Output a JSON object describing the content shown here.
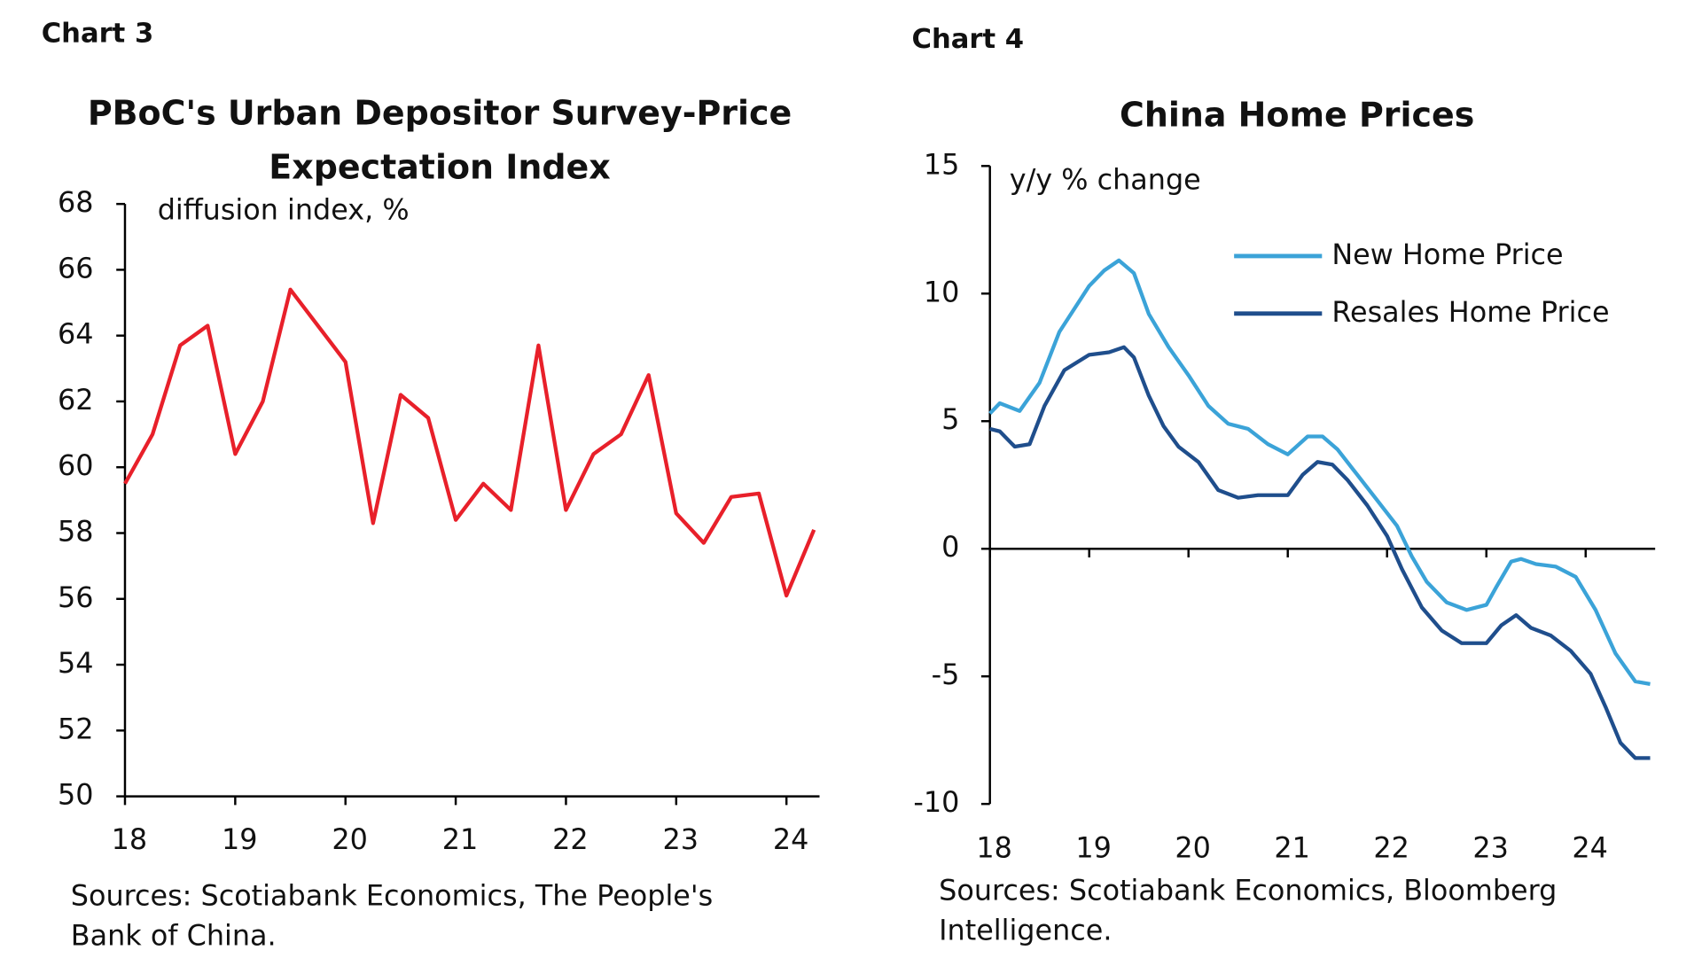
{
  "chart_data": [
    {
      "type": "line",
      "label": "Chart 3",
      "title": [
        "PBoC's Urban Depositor Survey-Price",
        "Expectation Index"
      ],
      "ylabel": "diffusion index, %",
      "source": [
        "Sources: Scotiabank Economics, The People's",
        "Bank of China."
      ],
      "x": [
        2018,
        2018.25,
        2018.5,
        2018.75,
        2019,
        2019.25,
        2019.5,
        2019.75,
        2020,
        2020.25,
        2020.5,
        2020.75,
        2021,
        2021.25,
        2021.5,
        2021.75,
        2022,
        2022.25,
        2022.5,
        2022.75,
        2023,
        2023.25,
        2023.5,
        2023.75,
        2024,
        2024.25
      ],
      "series": [
        {
          "name": null,
          "color": "#e8202a",
          "values": [
            59.5,
            61,
            63.7,
            64.3,
            60.4,
            62,
            65.4,
            64.3,
            63.2,
            58.3,
            62.2,
            61.5,
            58.4,
            59.5,
            58.7,
            63.7,
            58.7,
            60.4,
            61,
            62.8,
            58.6,
            57.7,
            59.1,
            59.2,
            56.1,
            58.1
          ]
        }
      ],
      "xlim": [
        2018,
        2024.3
      ],
      "xticks": [
        {
          "value": 2018,
          "label": "18"
        },
        {
          "value": 2019,
          "label": "19"
        },
        {
          "value": 2020,
          "label": "20"
        },
        {
          "value": 2021,
          "label": "21"
        },
        {
          "value": 2022,
          "label": "22"
        },
        {
          "value": 2023,
          "label": "23"
        },
        {
          "value": 2024,
          "label": "24"
        }
      ],
      "ylim": [
        50,
        68
      ],
      "yticks": [
        50,
        52,
        54,
        56,
        58,
        60,
        62,
        64,
        66,
        68
      ]
    },
    {
      "type": "line",
      "label": "Chart 4",
      "title": [
        "China Home Prices"
      ],
      "ylabel": "y/y % change",
      "source": [
        "Sources: Scotiabank Economics,  Bloomberg",
        "Intelligence."
      ],
      "legend": "upper right",
      "series": [
        {
          "name": "New Home Price",
          "color": "#3ba3d8",
          "x": [
            2018,
            2018.1,
            2018.3,
            2018.5,
            2018.7,
            2019,
            2019.15,
            2019.3,
            2019.45,
            2019.6,
            2019.8,
            2020,
            2020.2,
            2020.4,
            2020.6,
            2020.8,
            2021,
            2021.2,
            2021.35,
            2021.5,
            2021.7,
            2021.9,
            2022.1,
            2022.25,
            2022.4,
            2022.6,
            2022.8,
            2023,
            2023.1,
            2023.25,
            2023.35,
            2023.5,
            2023.7,
            2023.9,
            2024.1,
            2024.3,
            2024.5,
            2024.65
          ],
          "values": [
            5.3,
            5.7,
            5.4,
            6.5,
            8.5,
            10.3,
            10.9,
            11.3,
            10.8,
            9.2,
            7.9,
            6.8,
            5.6,
            4.9,
            4.7,
            4.1,
            3.7,
            4.4,
            4.4,
            3.9,
            2.9,
            1.9,
            0.9,
            -0.3,
            -1.3,
            -2.1,
            -2.4,
            -2.2,
            -1.5,
            -0.5,
            -0.4,
            -0.6,
            -0.7,
            -1.1,
            -2.4,
            -4.1,
            -5.2,
            -5.3
          ]
        },
        {
          "name": "Resales Home Price",
          "color": "#1f4e8c",
          "x": [
            2018,
            2018.1,
            2018.25,
            2018.4,
            2018.55,
            2018.75,
            2019,
            2019.2,
            2019.35,
            2019.45,
            2019.6,
            2019.75,
            2019.9,
            2020.1,
            2020.3,
            2020.5,
            2020.7,
            2021,
            2021.15,
            2021.3,
            2021.45,
            2021.6,
            2021.8,
            2022,
            2022.15,
            2022.35,
            2022.55,
            2022.75,
            2023,
            2023.15,
            2023.3,
            2023.45,
            2023.65,
            2023.85,
            2024.05,
            2024.2,
            2024.35,
            2024.5,
            2024.65
          ],
          "values": [
            4.7,
            4.6,
            4.0,
            4.1,
            5.6,
            7.0,
            7.6,
            7.7,
            7.9,
            7.5,
            6.0,
            4.8,
            4.0,
            3.4,
            2.3,
            2.0,
            2.1,
            2.1,
            2.9,
            3.4,
            3.3,
            2.7,
            1.7,
            0.5,
            -0.8,
            -2.3,
            -3.2,
            -3.7,
            -3.7,
            -3.0,
            -2.6,
            -3.1,
            -3.4,
            -4.0,
            -4.9,
            -6.2,
            -7.6,
            -8.2,
            -8.2
          ]
        }
      ],
      "xlim": [
        2018,
        2024.7
      ],
      "xticks": [
        {
          "value": 2018,
          "label": "18"
        },
        {
          "value": 2019,
          "label": "19"
        },
        {
          "value": 2020,
          "label": "20"
        },
        {
          "value": 2021,
          "label": "21"
        },
        {
          "value": 2022,
          "label": "22"
        },
        {
          "value": 2023,
          "label": "23"
        },
        {
          "value": 2024,
          "label": "24"
        }
      ],
      "ylim": [
        -10,
        15
      ],
      "yticks": [
        -10,
        -5,
        0,
        5,
        10,
        15
      ]
    }
  ]
}
